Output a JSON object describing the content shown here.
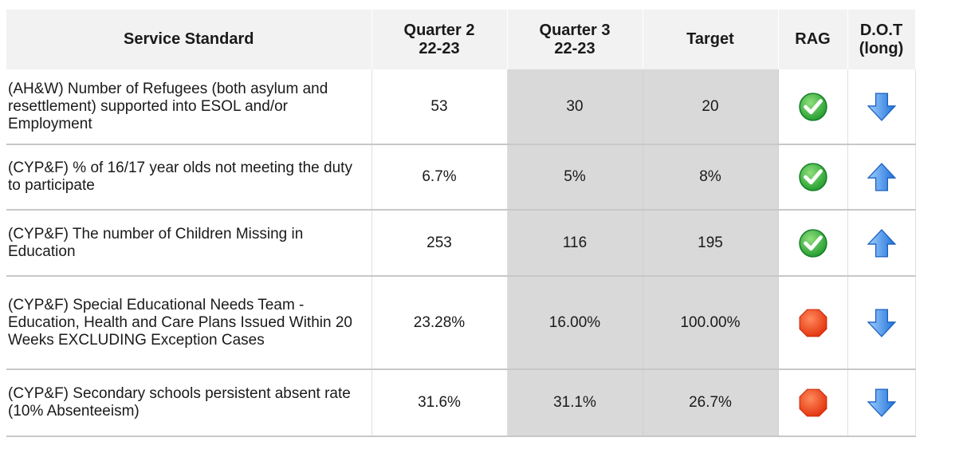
{
  "table": {
    "headers": [
      "Service Standard",
      "Quarter 2\n22-23",
      "Quarter 3\n22-23",
      "Target",
      "RAG",
      "D.O.T\n(long)"
    ],
    "rows": [
      [
        "(AH&W) Number of Refugees (both asylum and resettlement) supported into ESOL and/or Employment",
        "53",
        "30",
        "20"
      ],
      [
        "(CYP&F) % of 16/17 year olds not meeting the duty to participate",
        "6.7%",
        "5%",
        "8%"
      ],
      [
        "(CYP&F) The number of Children Missing in Education",
        "253",
        "116",
        "195"
      ],
      [
        "(CYP&F) Special Educational Needs Team - Education, Health and Care Plans Issued Within 20 Weeks  EXCLUDING Exception Cases",
        "23.28%",
        "16.00%",
        "100.00%"
      ],
      [
        "(CYP&F) Secondary schools persistent absent rate (10% Absenteeism)",
        "31.6%",
        "31.1%",
        "26.7%"
      ]
    ]
  }
}
